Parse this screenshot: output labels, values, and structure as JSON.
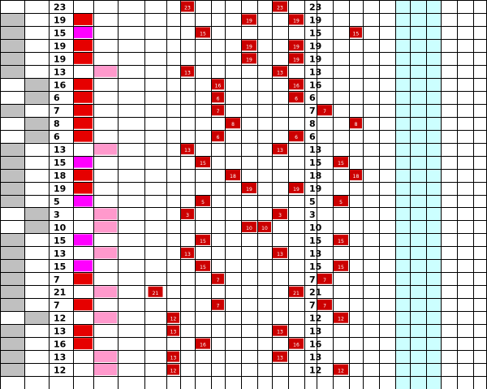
{
  "colors": {
    "grid": "#000000",
    "gray": "#c0c0c0",
    "red": "#e60000",
    "magenta": "#ff00ff",
    "pink": "#ff99cc",
    "cyan": "#ccffff",
    "marker_fill": "#cc0000",
    "marker_text": "#ffffff",
    "value_text": "#000000"
  },
  "rows": [
    {
      "value": "23",
      "gray": null,
      "indicator": null,
      "markers": [
        8,
        14
      ]
    },
    {
      "value": "19",
      "gray": 0,
      "indicator": "red",
      "markers": [
        12,
        15
      ]
    },
    {
      "value": "15",
      "gray": 0,
      "indicator": "magenta",
      "markers": [
        9,
        19
      ]
    },
    {
      "value": "19",
      "gray": 0,
      "indicator": "red",
      "markers": [
        12,
        15
      ]
    },
    {
      "value": "19",
      "gray": 0,
      "indicator": "red",
      "markers": [
        12,
        15
      ]
    },
    {
      "value": "13",
      "gray": 0,
      "indicator": "pink",
      "markers": [
        8,
        14
      ]
    },
    {
      "value": "16",
      "gray": 1,
      "indicator": "red",
      "markers": [
        10,
        15
      ]
    },
    {
      "value": "6",
      "gray": 1,
      "indicator": "red",
      "markers": [
        10,
        15
      ]
    },
    {
      "value": "7",
      "gray": 0,
      "indicator": "red",
      "markers": [
        10,
        17
      ]
    },
    {
      "value": "8",
      "gray": 1,
      "indicator": "red",
      "markers": [
        11,
        19
      ]
    },
    {
      "value": "6",
      "gray": 1,
      "indicator": "red",
      "markers": [
        10,
        15
      ]
    },
    {
      "value": "13",
      "gray": 0,
      "indicator": "pink",
      "markers": [
        8,
        14
      ]
    },
    {
      "value": "15",
      "gray": 0,
      "indicator": "magenta",
      "markers": [
        9,
        18
      ]
    },
    {
      "value": "18",
      "gray": 0,
      "indicator": "red",
      "markers": [
        11,
        19
      ]
    },
    {
      "value": "19",
      "gray": 0,
      "indicator": "red",
      "markers": [
        12,
        15
      ]
    },
    {
      "value": "5",
      "gray": 0,
      "indicator": "magenta",
      "markers": [
        9,
        18
      ]
    },
    {
      "value": "3",
      "gray": 1,
      "indicator": "pink",
      "markers": [
        8,
        14
      ]
    },
    {
      "value": "10",
      "gray": 1,
      "indicator": "pink",
      "markers": [
        12,
        13
      ]
    },
    {
      "value": "15",
      "gray": 0,
      "indicator": "magenta",
      "markers": [
        9,
        18
      ]
    },
    {
      "value": "13",
      "gray": 0,
      "indicator": "pink",
      "markers": [
        8,
        14
      ]
    },
    {
      "value": "15",
      "gray": 0,
      "indicator": "magenta",
      "markers": [
        9,
        18
      ]
    },
    {
      "value": "7",
      "gray": 0,
      "indicator": "red",
      "markers": [
        10,
        17
      ]
    },
    {
      "value": "21",
      "gray": 0,
      "indicator": "pink",
      "markers": [
        6,
        15
      ]
    },
    {
      "value": "7",
      "gray": 0,
      "indicator": "red",
      "markers": [
        10,
        17
      ]
    },
    {
      "value": "12",
      "gray": 1,
      "indicator": "pink",
      "markers": [
        7,
        18
      ]
    },
    {
      "value": "13",
      "gray": 0,
      "indicator": "red",
      "markers": [
        7,
        14
      ]
    },
    {
      "value": "16",
      "gray": 0,
      "indicator": "red",
      "markers": [
        9,
        15
      ]
    },
    {
      "value": "13",
      "gray": 0,
      "indicator": "pink",
      "markers": [
        7,
        14
      ]
    },
    {
      "value": "12",
      "gray": 0,
      "indicator": "pink",
      "markers": [
        7,
        18
      ]
    },
    {
      "value": "",
      "gray": null,
      "indicator": null,
      "markers": []
    }
  ]
}
